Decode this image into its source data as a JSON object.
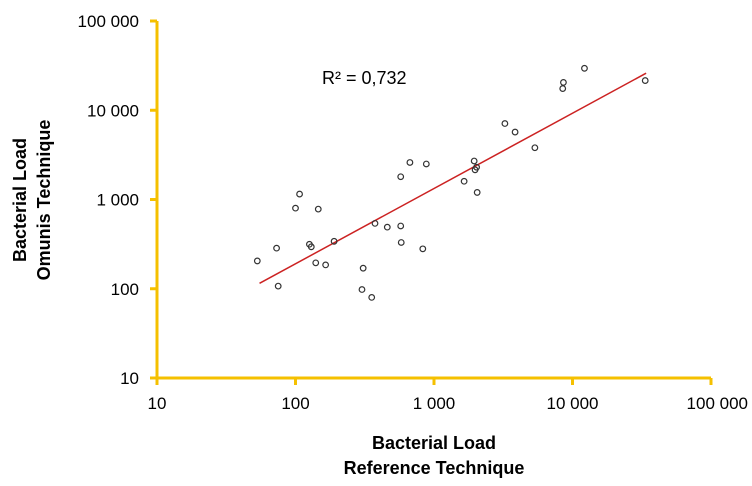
{
  "chart_data": {
    "type": "scatter",
    "xscale": "log",
    "yscale": "log",
    "xlim": [
      10,
      100000
    ],
    "ylim": [
      10,
      100000
    ],
    "xticks": [
      10,
      100,
      1000,
      10000,
      100000
    ],
    "yticks": [
      10,
      100,
      1000,
      10000,
      100000
    ],
    "xtick_labels": [
      "10",
      "100",
      "1 000",
      "10 000",
      "100 000"
    ],
    "ytick_labels": [
      "10",
      "100",
      "1 000",
      "10 000",
      "100 000"
    ],
    "xlabel_line1": "Bacterial Load",
    "xlabel_line2": "Reference Technique",
    "ylabel_line1": "Bacterial Load",
    "ylabel_line2": "Omunis Technique",
    "annotation": "R² = 0,732",
    "grid": false,
    "axis_color": "#f5c000",
    "trendline_color": "#cc2222",
    "marker_color": "#333333",
    "trendline": {
      "x": [
        55,
        34000
      ],
      "y": [
        115,
        26000
      ]
    },
    "points": [
      {
        "x": 53,
        "y": 205
      },
      {
        "x": 73,
        "y": 285
      },
      {
        "x": 75,
        "y": 107
      },
      {
        "x": 100,
        "y": 800
      },
      {
        "x": 107,
        "y": 1150
      },
      {
        "x": 126,
        "y": 315
      },
      {
        "x": 130,
        "y": 295
      },
      {
        "x": 140,
        "y": 195
      },
      {
        "x": 146,
        "y": 780
      },
      {
        "x": 165,
        "y": 185
      },
      {
        "x": 190,
        "y": 340
      },
      {
        "x": 302,
        "y": 98
      },
      {
        "x": 308,
        "y": 170
      },
      {
        "x": 355,
        "y": 80
      },
      {
        "x": 375,
        "y": 540
      },
      {
        "x": 460,
        "y": 490
      },
      {
        "x": 580,
        "y": 330
      },
      {
        "x": 575,
        "y": 505
      },
      {
        "x": 575,
        "y": 1800
      },
      {
        "x": 670,
        "y": 2600
      },
      {
        "x": 830,
        "y": 280
      },
      {
        "x": 880,
        "y": 2500
      },
      {
        "x": 1650,
        "y": 1600
      },
      {
        "x": 1950,
        "y": 2700
      },
      {
        "x": 1980,
        "y": 2150
      },
      {
        "x": 2030,
        "y": 2300
      },
      {
        "x": 2050,
        "y": 1200
      },
      {
        "x": 3250,
        "y": 7100
      },
      {
        "x": 3850,
        "y": 5700
      },
      {
        "x": 5350,
        "y": 3800
      },
      {
        "x": 8500,
        "y": 17500
      },
      {
        "x": 8600,
        "y": 20500
      },
      {
        "x": 12200,
        "y": 29500
      },
      {
        "x": 33500,
        "y": 21500
      }
    ]
  }
}
